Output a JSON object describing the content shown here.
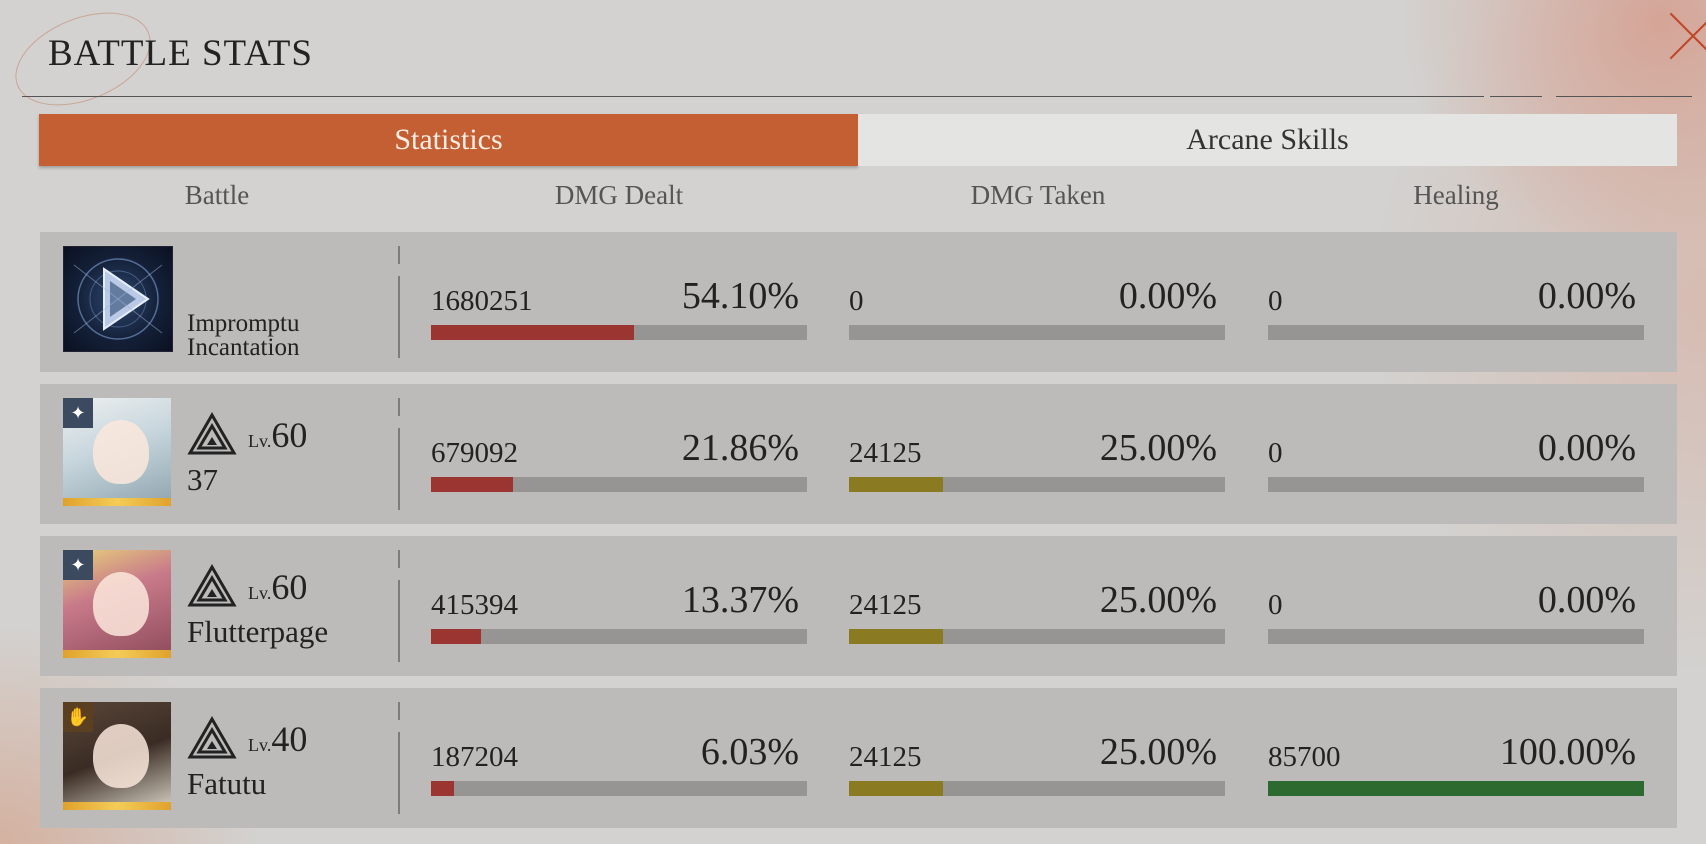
{
  "header": {
    "title": "BATTLE STATS"
  },
  "tabs": [
    {
      "label": "Statistics",
      "active": true
    },
    {
      "label": "Arcane Skills",
      "active": false
    }
  ],
  "columns": {
    "battle": "Battle",
    "dmg_dealt": "DMG Dealt",
    "dmg_taken": "DMG Taken",
    "healing": "Healing"
  },
  "rows": [
    {
      "name": "Impromptu Incantation",
      "kind": "arcane-skill",
      "dmg_dealt": {
        "value": "1680251",
        "percent": "54.10%",
        "fraction": 0.541
      },
      "dmg_taken": {
        "value": "0",
        "percent": "0.00%",
        "fraction": 0
      },
      "healing": {
        "value": "0",
        "percent": "0.00%",
        "fraction": 0
      }
    },
    {
      "name": "37",
      "level_prefix": "Lv.",
      "level": "60",
      "dmg_dealt": {
        "value": "679092",
        "percent": "21.86%",
        "fraction": 0.2186
      },
      "dmg_taken": {
        "value": "24125",
        "percent": "25.00%",
        "fraction": 0.25
      },
      "healing": {
        "value": "0",
        "percent": "0.00%",
        "fraction": 0
      }
    },
    {
      "name": "Flutterpage",
      "level_prefix": "Lv.",
      "level": "60",
      "dmg_dealt": {
        "value": "415394",
        "percent": "13.37%",
        "fraction": 0.1337
      },
      "dmg_taken": {
        "value": "24125",
        "percent": "25.00%",
        "fraction": 0.25
      },
      "healing": {
        "value": "0",
        "percent": "0.00%",
        "fraction": 0
      }
    },
    {
      "name": "Fatutu",
      "level_prefix": "Lv.",
      "level": "40",
      "dmg_dealt": {
        "value": "187204",
        "percent": "6.03%",
        "fraction": 0.0603
      },
      "dmg_taken": {
        "value": "24125",
        "percent": "25.00%",
        "fraction": 0.25
      },
      "healing": {
        "value": "85700",
        "percent": "100.00%",
        "fraction": 1.0
      }
    }
  ],
  "colors": {
    "accent": "#c45f33",
    "dmg_dealt_bar": "#9b3531",
    "dmg_taken_bar": "#8a7a22",
    "healing_bar": "#2c6a30",
    "bar_track": "#969594"
  },
  "icons": {
    "close": "close-icon",
    "class": "triple-triangle-class-icon",
    "afflatus_star": "star-badge-icon",
    "afflatus_hand": "hand-badge-icon"
  }
}
